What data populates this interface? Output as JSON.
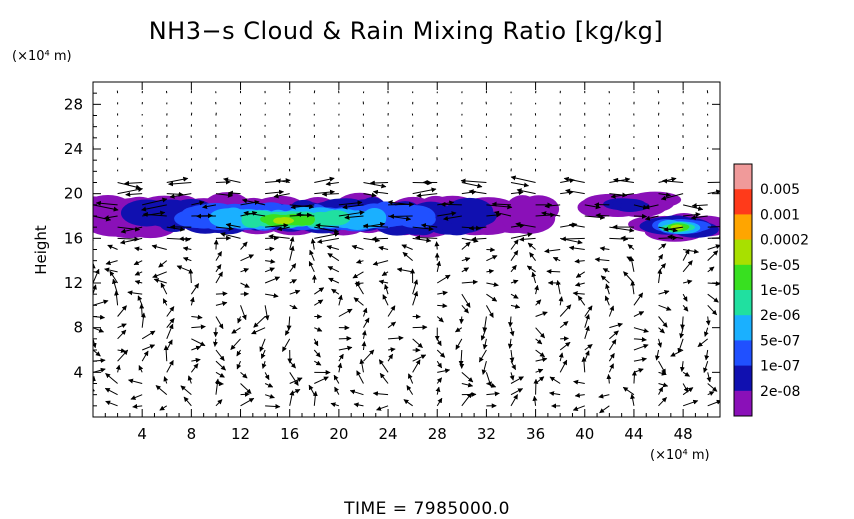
{
  "chart_data": {
    "type": "contour-vector",
    "title": "NH3−s Cloud & Rain Mixing Ratio [kg/kg]",
    "ylabel": "Height",
    "y_unit": "(×10⁴ m)",
    "x_unit": "(×10⁴ m)",
    "xlim": [
      0,
      51
    ],
    "ylim": [
      0,
      30
    ],
    "x_ticks": [
      "4",
      "8",
      "12",
      "16",
      "20",
      "24",
      "28",
      "32",
      "36",
      "40",
      "44",
      "48"
    ],
    "y_ticks": [
      "4",
      "8",
      "12",
      "16",
      "20",
      "24",
      "28"
    ],
    "colorbar": {
      "levels": [
        "0.005",
        "0.001",
        "0.0002",
        "5e-05",
        "1e-05",
        "2e-06",
        "5e-07",
        "1e-07",
        "2e-08"
      ],
      "colors": [
        "#f09a9a",
        "#ff3a1a",
        "#ffa500",
        "#a8e000",
        "#38e020",
        "#20e0a0",
        "#1ab0ff",
        "#2050ff",
        "#1010b0",
        "#8a10b8"
      ]
    },
    "cloud_regions": [
      {
        "x": [
          0,
          36.5
        ],
        "y": [
          16.5,
          19.5
        ],
        "peak_x": 15,
        "peak_y": 17.5,
        "max_level": "0.0002"
      },
      {
        "x": [
          41,
          46
        ],
        "y": [
          18,
          20
        ],
        "max_level": "1e-07"
      },
      {
        "x": [
          45.5,
          50
        ],
        "y": [
          16,
          18
        ],
        "peak_x": 47.5,
        "peak_y": 17,
        "max_level": "0.0002"
      }
    ],
    "footer": "TIME  =  7985000.0"
  }
}
